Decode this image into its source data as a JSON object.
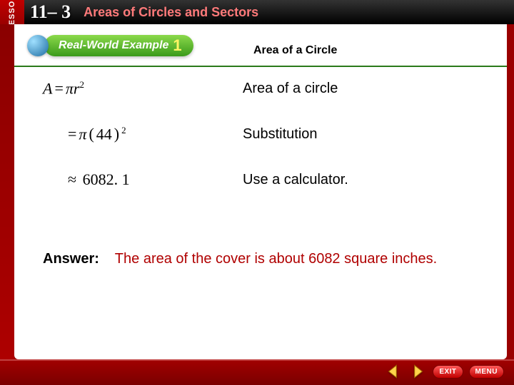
{
  "header": {
    "lesson_tag": "LESSON",
    "lesson_number": "11– 3",
    "title": "Areas of Circles and Sectors"
  },
  "example": {
    "badge_prefix": "Real-World",
    "badge_word": "Example",
    "badge_number": "1",
    "section_title": "Area of a Circle"
  },
  "steps": [
    {
      "formula_html": "<span>A</span><span class='op'>=</span><span>π</span><span>r</span><sup>2</sup>",
      "explain": "Area of a circle"
    },
    {
      "formula_html": "<span class='op'>=</span><span>π</span><span class='op'>(</span><span class='num'>44</span><span class='op'>)</span><sup>2</sup>",
      "explain": "Substitution",
      "indent": "indent1"
    },
    {
      "formula_html": "<span class='op'>≈</span> <span class='num'>6082. 1</span>",
      "explain": "Use a calculator.",
      "indent": "indent2"
    }
  ],
  "answer": {
    "label": "Answer:",
    "text": "The area of the cover is about 6082 square inches."
  },
  "nav": {
    "exit": "EXIT",
    "menu": "MENU"
  },
  "colors": {
    "brand_red": "#b00000",
    "pill_green_top": "#8bd94b",
    "pill_green_bottom": "#3a9a1a",
    "ex_num_yellow": "#fff564"
  }
}
